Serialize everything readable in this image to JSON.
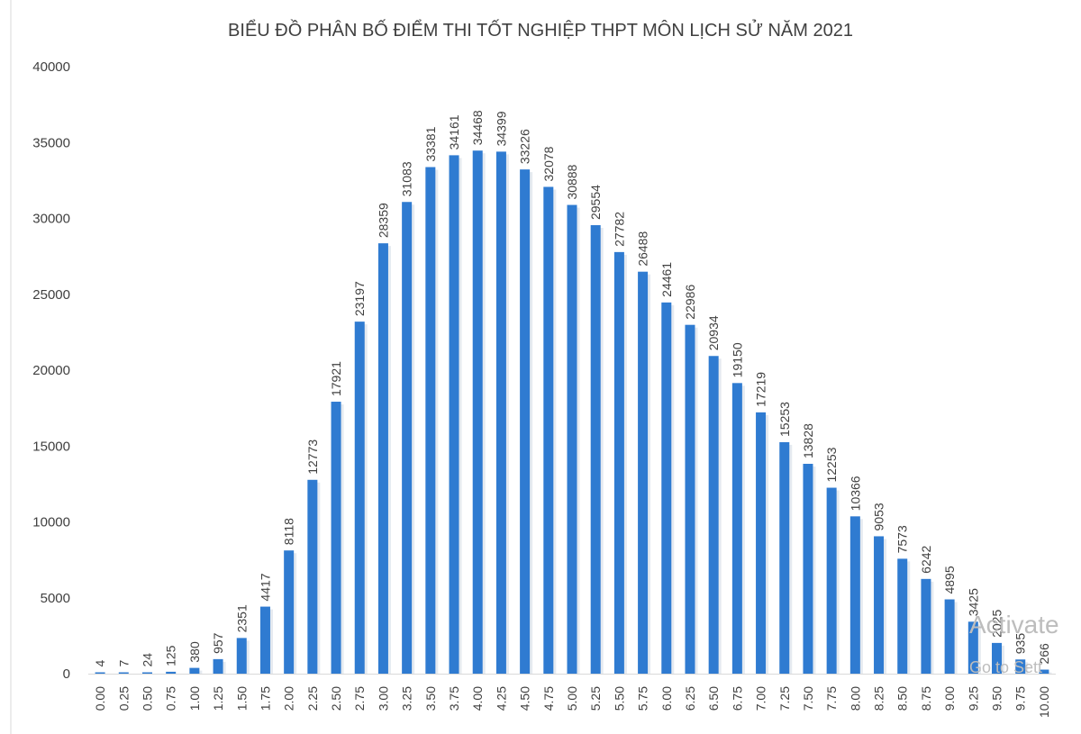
{
  "chart_data": {
    "type": "bar",
    "title": "BIỂU ĐỒ PHÂN BỐ ĐIỂM THI TỐT NGHIỆP THPT MÔN LỊCH SỬ NĂM 2021",
    "xlabel": "",
    "ylabel": "",
    "ylim": [
      0,
      40000
    ],
    "yticks": [
      "0",
      "5000",
      "10000",
      "15000",
      "20000",
      "25000",
      "30000",
      "35000",
      "40000"
    ],
    "grid": false,
    "legend": "none",
    "bar_color": "#2f7bd1",
    "categories": [
      "0.00",
      "0.25",
      "0.50",
      "0.75",
      "1.00",
      "1.25",
      "1.50",
      "1.75",
      "2.00",
      "2.25",
      "2.50",
      "2.75",
      "3.00",
      "3.25",
      "3.50",
      "3.75",
      "4.00",
      "4.25",
      "4.50",
      "4.75",
      "5.00",
      "5.25",
      "5.50",
      "5.75",
      "6.00",
      "6.25",
      "6.50",
      "6.75",
      "7.00",
      "7.25",
      "7.50",
      "7.75",
      "8.00",
      "8.25",
      "8.50",
      "8.75",
      "9.00",
      "9.25",
      "9.50",
      "9.75",
      "10.00"
    ],
    "values": [
      4,
      7,
      24,
      125,
      380,
      957,
      2351,
      4417,
      8118,
      12773,
      17921,
      23197,
      28359,
      31083,
      33381,
      34161,
      34468,
      34399,
      33226,
      32078,
      30888,
      29554,
      27782,
      26488,
      24461,
      22986,
      20934,
      19150,
      17219,
      15253,
      13828,
      12253,
      10366,
      9053,
      7573,
      6242,
      4895,
      3425,
      2025,
      935,
      266
    ],
    "data_labels": [
      "4",
      "7",
      "24",
      "125",
      "380",
      "957",
      "2351",
      "4417",
      "8118",
      "12773",
      "17921",
      "23197",
      "28359",
      "31083",
      "33381",
      "34161",
      "34468",
      "34399",
      "33226",
      "32078",
      "30888",
      "29554",
      "27782",
      "26488",
      "24461",
      "22986",
      "20934",
      "19150",
      "17219",
      "15253",
      "13828",
      "12253",
      "10366",
      "9053",
      "7573",
      "6242",
      "4895",
      "3425",
      "2025",
      "935",
      "266"
    ]
  },
  "watermark": {
    "line1": "Activate",
    "line2": "Go to Sett"
  }
}
